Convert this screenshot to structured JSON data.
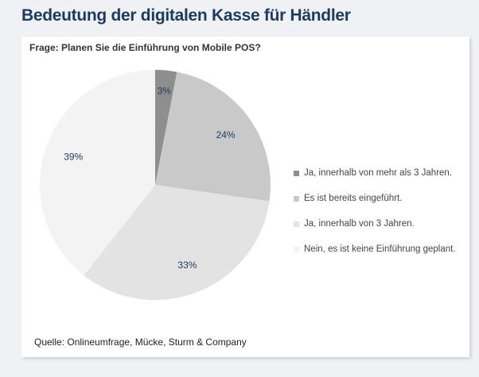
{
  "header": {
    "title": "Bedeutung der digitalen Kasse für Händler"
  },
  "chart_data": {
    "type": "pie",
    "title": "Frage: Planen Sie die Einführung von Mobile POS?",
    "categories": [
      "Ja, innerhalb von mehr als 3 Jahren.",
      "Es ist bereits eingeführt.",
      "Ja, innerhalb von 3 Jahren.",
      "Nein, es ist keine Einführung geplant."
    ],
    "values": [
      3,
      24,
      33,
      39
    ],
    "labels": [
      "3%",
      "24%",
      "33%",
      "39%"
    ],
    "colors": [
      "#8e8e8e",
      "#c9c9c9",
      "#e3e3e3",
      "#f3f3f3"
    ],
    "legend": "right",
    "start": "top, clockwise"
  },
  "footer": {
    "source": "Quelle: Onlineumfrage, Mücke, Sturm & Company"
  }
}
